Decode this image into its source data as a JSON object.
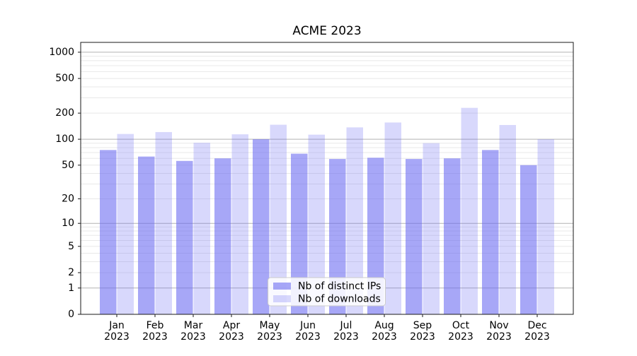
{
  "chart_data": {
    "type": "bar",
    "title": "ACME 2023",
    "categories": [
      "Jan",
      "Feb",
      "Mar",
      "Apr",
      "May",
      "Jun",
      "Jul",
      "Aug",
      "Sep",
      "Oct",
      "Nov",
      "Dec"
    ],
    "x_tick_year": "2023",
    "series": [
      {
        "name": "Nb of distinct IPs",
        "color": "rgba(104,104,242,0.58)",
        "values": [
          75,
          63,
          56,
          60,
          100,
          68,
          59,
          61,
          59,
          60,
          75,
          50
        ]
      },
      {
        "name": "Nb of downloads",
        "color": "rgba(104,104,242,0.26)",
        "values": [
          115,
          121,
          91,
          114,
          147,
          113,
          137,
          156,
          90,
          230,
          146,
          100
        ]
      }
    ],
    "y_axis": {
      "scale": "log1p",
      "ticks": [
        0,
        1,
        2,
        5,
        10,
        20,
        50,
        100,
        200,
        500,
        1000
      ],
      "minor_gridlines": [
        2,
        3,
        4,
        5,
        6,
        7,
        8,
        9,
        20,
        30,
        40,
        50,
        60,
        70,
        80,
        90,
        200,
        300,
        400,
        500,
        600,
        700,
        800,
        900
      ],
      "major_gridlines": [
        1,
        10,
        100,
        1000
      ],
      "max": 1296
    },
    "legend": {
      "position": "lower-center"
    },
    "grid": {
      "major_color": "#b3b3b3",
      "minor_color": "#e8e8e8"
    },
    "colors": {
      "background": "#ffffff",
      "plot_background": "#ffffff",
      "spine": "#1a1a1a",
      "tick": "#1a1a1a",
      "legend_border": "#cccccc",
      "legend_background": "rgba(255,255,255,0.85)"
    }
  }
}
